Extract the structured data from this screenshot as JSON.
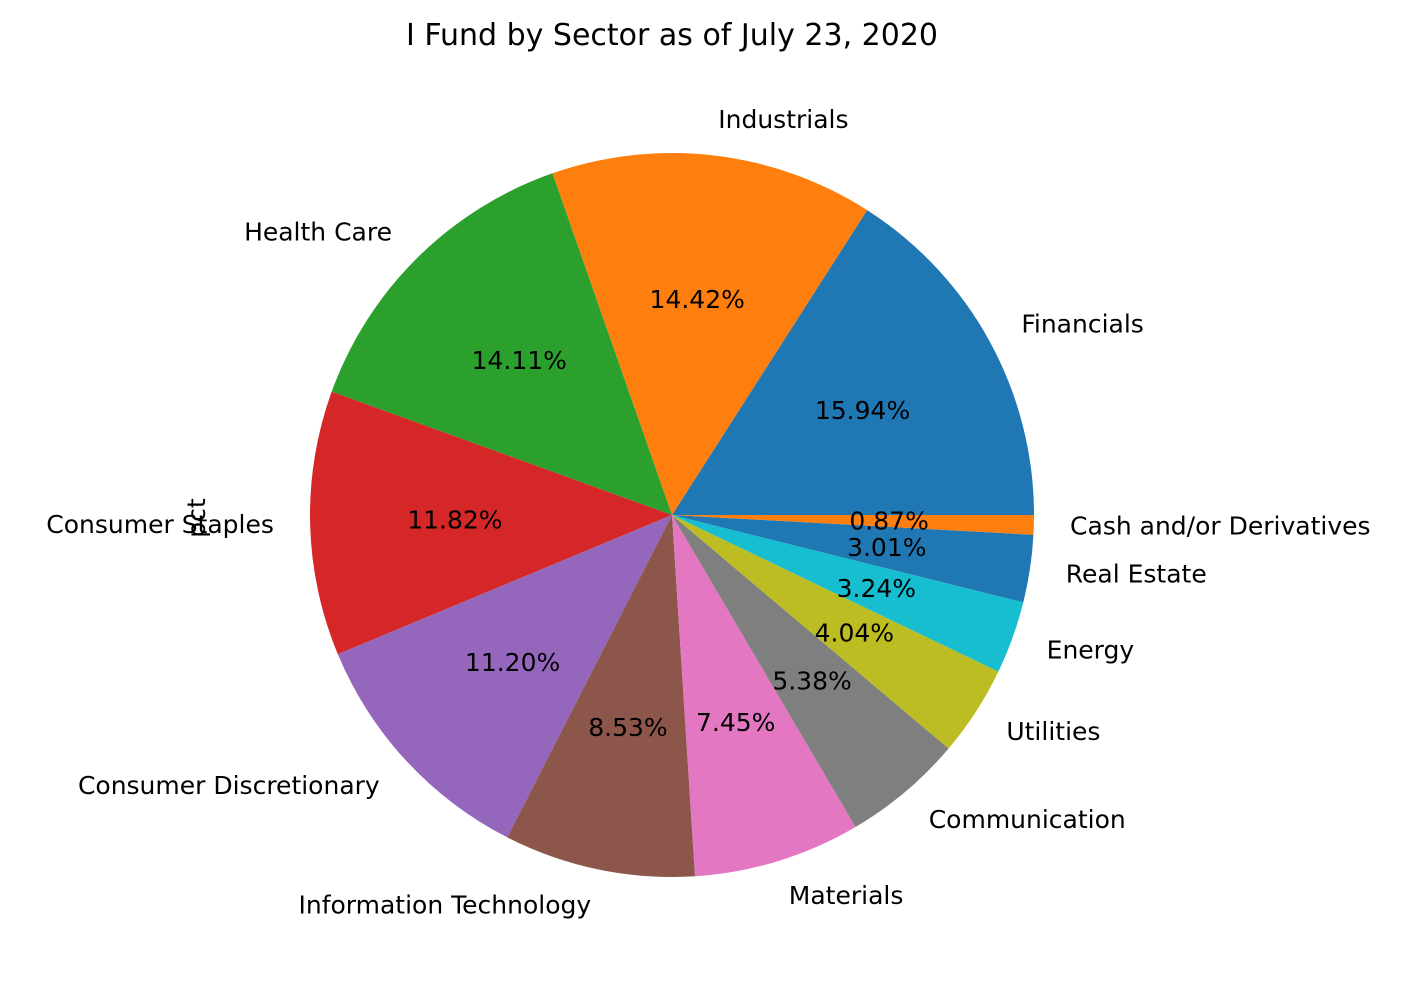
{
  "chart_data": {
    "type": "pie",
    "title": "I Fund by Sector as of July 23, 2020",
    "ylabel": "pct",
    "start_angle_deg": 0,
    "direction": "counterclockwise",
    "pct_format": "%.2f%%",
    "legend": "none",
    "slices": [
      {
        "label": "Financials",
        "value": 15.94,
        "color": "#1f77b4"
      },
      {
        "label": "Industrials",
        "value": 14.42,
        "color": "#ff7f0e"
      },
      {
        "label": "Health Care",
        "value": 14.11,
        "color": "#2ca02c"
      },
      {
        "label": "Consumer Staples",
        "value": 11.82,
        "color": "#d62728"
      },
      {
        "label": "Consumer Discretionary",
        "value": 11.2,
        "color": "#9467bd"
      },
      {
        "label": "Information Technology",
        "value": 8.53,
        "color": "#8c564b"
      },
      {
        "label": "Materials",
        "value": 7.45,
        "color": "#e377c2"
      },
      {
        "label": "Communication",
        "value": 5.38,
        "color": "#7f7f7f"
      },
      {
        "label": "Utilities",
        "value": 4.04,
        "color": "#bcbd22"
      },
      {
        "label": "Energy",
        "value": 3.24,
        "color": "#17becf"
      },
      {
        "label": "Real Estate",
        "value": 3.01,
        "color": "#1f77b4"
      },
      {
        "label": "Cash and/or Derivatives",
        "value": 0.87,
        "color": "#ff7f0e"
      }
    ]
  }
}
